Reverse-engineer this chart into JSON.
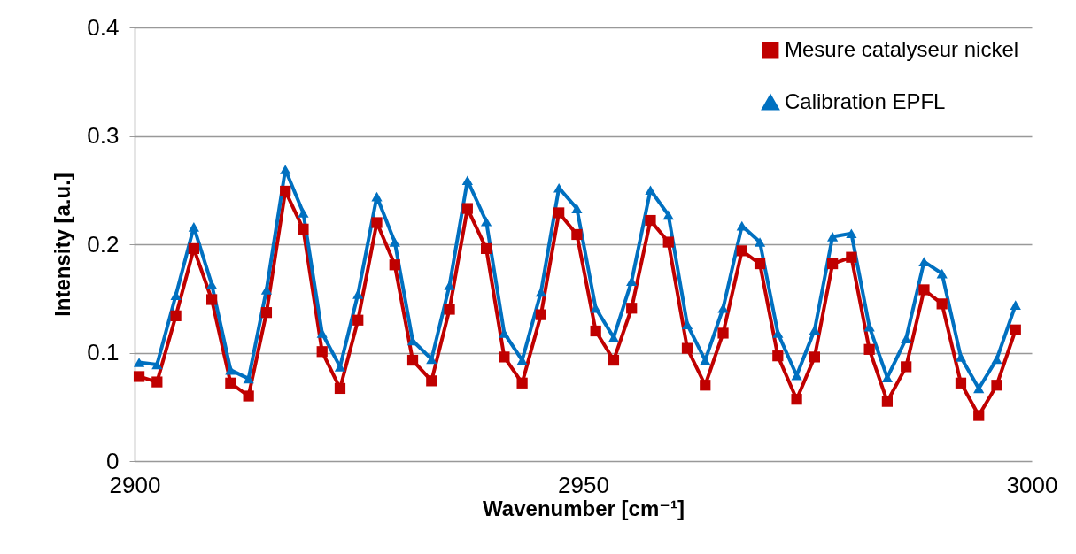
{
  "chart_data": {
    "type": "line",
    "xlabel": "Wavenumber [cm⁻¹]",
    "ylabel": "Intensity [a.u.]",
    "x": [
      2900.5,
      2902.5,
      2904.6,
      2906.6,
      2908.6,
      2910.7,
      2912.7,
      2914.7,
      2916.8,
      2918.8,
      2920.9,
      2922.9,
      2924.9,
      2927.0,
      2929.0,
      2931.0,
      2933.1,
      2935.1,
      2937.1,
      2939.2,
      2941.2,
      2943.2,
      2945.3,
      2947.3,
      2949.3,
      2951.4,
      2953.4,
      2955.4,
      2957.5,
      2959.5,
      2961.6,
      2963.6,
      2965.6,
      2967.7,
      2969.7,
      2971.7,
      2973.8,
      2975.8,
      2977.8,
      2979.9,
      2981.9,
      2983.9,
      2986.0,
      2988.0,
      2990.0,
      2992.1,
      2994.1,
      2996.1,
      2998.2
    ],
    "series": [
      {
        "name": "Mesure catalyseur nickel",
        "color": "#c00000",
        "marker": "square",
        "values": [
          0.078,
          0.073,
          0.134,
          0.196,
          0.149,
          0.072,
          0.06,
          0.137,
          0.249,
          0.214,
          0.101,
          0.067,
          0.13,
          0.22,
          0.181,
          0.093,
          0.074,
          0.14,
          0.233,
          0.196,
          0.096,
          0.072,
          0.135,
          0.229,
          0.209,
          0.12,
          0.093,
          0.141,
          0.222,
          0.202,
          0.104,
          0.07,
          0.118,
          0.194,
          0.182,
          0.097,
          0.057,
          0.096,
          0.182,
          0.188,
          0.103,
          0.055,
          0.087,
          0.158,
          0.145,
          0.072,
          0.042,
          0.07,
          0.121
        ]
      },
      {
        "name": "Calibration EPFL",
        "color": "#0070c0",
        "marker": "triangle",
        "values": [
          0.091,
          0.089,
          0.153,
          0.216,
          0.163,
          0.084,
          0.076,
          0.158,
          0.269,
          0.229,
          0.118,
          0.087,
          0.154,
          0.244,
          0.202,
          0.111,
          0.094,
          0.162,
          0.259,
          0.221,
          0.118,
          0.093,
          0.156,
          0.252,
          0.233,
          0.141,
          0.114,
          0.166,
          0.25,
          0.227,
          0.126,
          0.093,
          0.141,
          0.217,
          0.202,
          0.118,
          0.079,
          0.121,
          0.207,
          0.21,
          0.124,
          0.077,
          0.113,
          0.184,
          0.173,
          0.096,
          0.067,
          0.094,
          0.144
        ]
      }
    ],
    "xlim": [
      2900,
      3000
    ],
    "xticks": [
      2900,
      2950,
      3000
    ],
    "ylim": [
      0,
      0.4
    ],
    "yticks": [
      0,
      0.1,
      0.2,
      0.3,
      0.4
    ],
    "grid": "y",
    "legend": "top right",
    "line_style": "solid"
  }
}
